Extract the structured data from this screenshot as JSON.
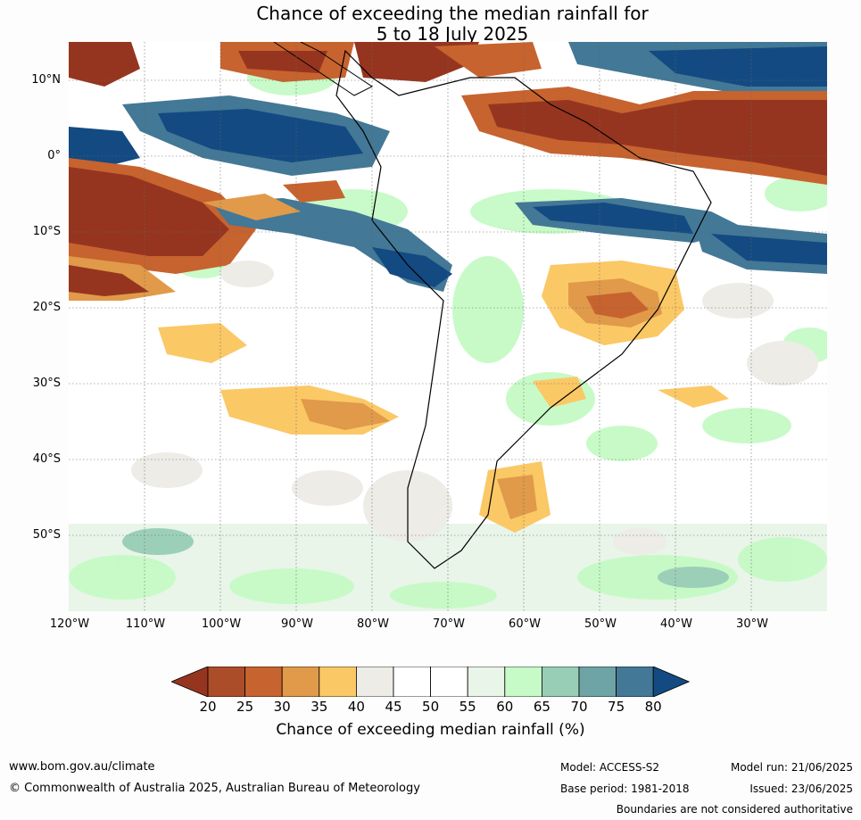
{
  "title_line1": "Chance of exceeding the median rainfall for",
  "title_line2": "5 to 18 July 2025",
  "lat_labels": [
    "10°N",
    "0°",
    "10°S",
    "20°S",
    "30°S",
    "40°S",
    "50°S"
  ],
  "lon_labels": [
    "120°W",
    "110°W",
    "100°W",
    "90°W",
    "80°W",
    "70°W",
    "60°W",
    "50°W",
    "40°W",
    "30°W"
  ],
  "colorbar": {
    "ticks": [
      "20",
      "25",
      "30",
      "35",
      "40",
      "45",
      "50",
      "55",
      "60",
      "65",
      "70",
      "75",
      "80"
    ],
    "colors": [
      "#96351f",
      "#ac4d2a",
      "#c7632f",
      "#e09a4a",
      "#fbc866",
      "#edece7",
      "#ffffff",
      "#ffffff",
      "#e8f5e8",
      "#c6fac6",
      "#98ceb6",
      "#6ea4a6",
      "#437896",
      "#134a82"
    ],
    "label": "Chance of exceeding median rainfall (%)"
  },
  "footer": {
    "website": "www.bom.gov.au/climate",
    "copyright": "© Commonwealth of Australia 2025, Australian Bureau of Meteorology",
    "model": "Model: ACCESS-S2",
    "base_period": "Base period: 1981-2018",
    "model_run": "Model run: 21/06/2025",
    "issued": "Issued: 23/06/2025",
    "disclaimer": "Boundaries are not considered authoritative"
  }
}
